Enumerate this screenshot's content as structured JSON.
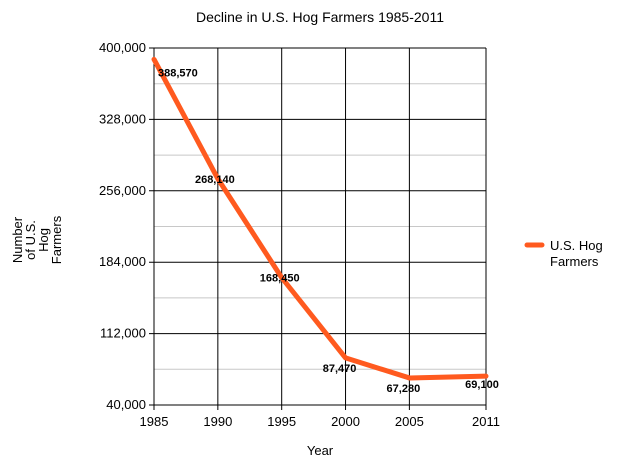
{
  "chart_data": {
    "type": "line",
    "title": "Decline in U.S. Hog Farmers 1985-2011",
    "xlabel": "Year",
    "ylabel_lines": [
      "Number",
      "of U.S.",
      "Hog",
      "Farmers"
    ],
    "x": [
      "1985",
      "1990",
      "1995",
      "2000",
      "2005",
      "2011"
    ],
    "series": [
      {
        "name": "U.S. Hog Farmers",
        "name_lines": [
          "U.S. Hog",
          "Farmers"
        ],
        "color": "#ff5a1f",
        "values": [
          388570,
          268140,
          168450,
          87470,
          67280,
          69100
        ],
        "labels": [
          "388,570",
          "268,140",
          "168,450",
          "87,470",
          "67,280",
          "69,100"
        ]
      }
    ],
    "ylim": [
      40000,
      400000
    ],
    "yticks": [
      40000,
      112000,
      184000,
      256000,
      328000,
      400000
    ],
    "ytick_labels": [
      "40,000",
      "112,000",
      "184,000",
      "256,000",
      "328,000",
      "400,000"
    ],
    "grid": true,
    "legend": "right"
  }
}
